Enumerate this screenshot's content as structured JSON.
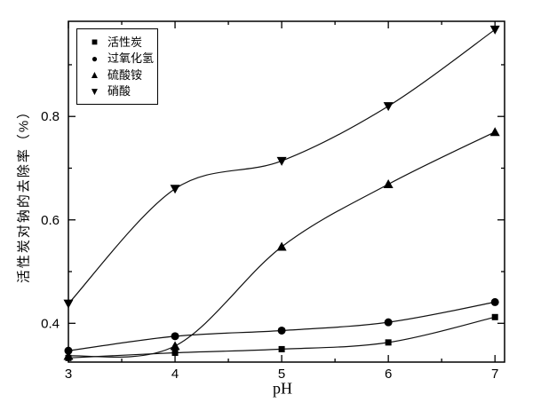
{
  "chart_data": {
    "type": "line",
    "title": "",
    "xlabel": "pH",
    "ylabel": "活性炭对钠的去除率（%）",
    "x": [
      3,
      4,
      5,
      6,
      7
    ],
    "xticks": [
      3,
      4,
      5,
      6,
      7
    ],
    "xminor": [
      3.5,
      4.5,
      5.5,
      6.5
    ],
    "yticks": [
      0.4,
      0.6,
      0.8
    ],
    "ytick_labels": [
      "0.4",
      "0.6",
      "0.8"
    ],
    "yminor": [
      0.5,
      0.7,
      0.9
    ],
    "xlim": [
      3,
      7.09
    ],
    "ylim": [
      0.325,
      0.984
    ],
    "grid": false,
    "legend_position": "top-left",
    "background": "#ffffff",
    "line_color": "#111111",
    "marker_color": "#000000",
    "series": [
      {
        "id": "activated-carbon",
        "name": "活性炭",
        "marker": "square",
        "symbol_char": "■",
        "values": [
          0.333,
          0.343,
          0.35,
          0.363,
          0.412
        ]
      },
      {
        "id": "hydrogen-peroxide",
        "name": "过氧化氢",
        "marker": "circle",
        "symbol_char": "●",
        "values": [
          0.347,
          0.375,
          0.386,
          0.402,
          0.441
        ]
      },
      {
        "id": "ammonium-sulfate",
        "name": "硫酸铵",
        "marker": "triangle-up",
        "symbol_char": "▲",
        "values": [
          0.337,
          0.356,
          0.548,
          0.669,
          0.77
        ]
      },
      {
        "id": "nitric-acid",
        "name": "硝酸",
        "marker": "triangle-down",
        "symbol_char": "▼",
        "values": [
          0.438,
          0.66,
          0.714,
          0.82,
          0.968
        ]
      }
    ]
  }
}
